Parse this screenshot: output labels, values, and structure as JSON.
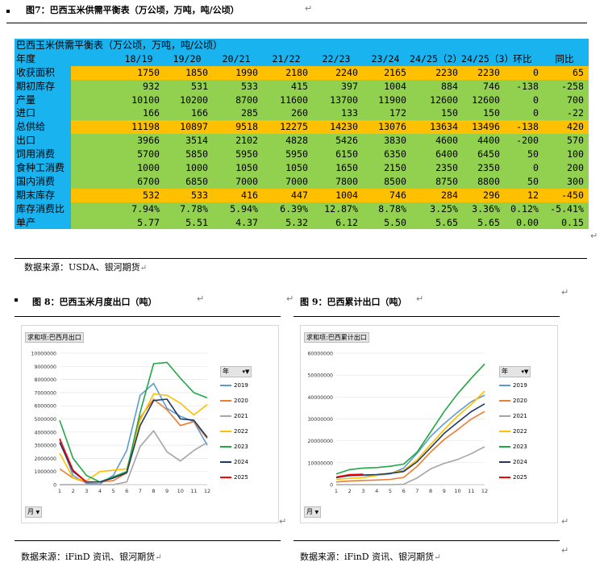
{
  "fig7": {
    "caption": "图7：巴西玉米供需平衡表（万公顷，万吨，吨/公顷）",
    "table_title": "巴西玉米供需平衡表（万公顷，万吨，吨/公顷）",
    "header": [
      "年度",
      "18/19",
      "19/20",
      "20/21",
      "21/22",
      "22/23",
      "23/24",
      "24/25（2）",
      "24/25（3）",
      "环比",
      "同比"
    ],
    "rows": [
      {
        "label": "收获面积",
        "color": "orange",
        "values": [
          "1750",
          "1850",
          "1990",
          "2180",
          "2240",
          "2165",
          "2230",
          "2230",
          "0",
          "65"
        ]
      },
      {
        "label": "期初库存",
        "color": "green",
        "values": [
          "932",
          "531",
          "533",
          "415",
          "397",
          "1004",
          "884",
          "746",
          "-138",
          "-258"
        ]
      },
      {
        "label": "产量",
        "color": "green",
        "values": [
          "10100",
          "10200",
          "8700",
          "11600",
          "13700",
          "11900",
          "12600",
          "12600",
          "0",
          "700"
        ]
      },
      {
        "label": "进口",
        "color": "green",
        "values": [
          "166",
          "166",
          "285",
          "260",
          "133",
          "172",
          "150",
          "150",
          "0",
          "-22"
        ]
      },
      {
        "label": "总供给",
        "color": "orange",
        "values": [
          "11198",
          "10897",
          "9518",
          "12275",
          "14230",
          "13076",
          "13634",
          "13496",
          "-138",
          "420"
        ]
      },
      {
        "label": "出口",
        "color": "green",
        "values": [
          "3966",
          "3514",
          "2102",
          "4828",
          "5426",
          "3830",
          "4600",
          "4400",
          "-200",
          "570"
        ]
      },
      {
        "label": "饲用消费",
        "color": "green",
        "values": [
          "5700",
          "5850",
          "5950",
          "5950",
          "6150",
          "6350",
          "6400",
          "6450",
          "50",
          "100"
        ]
      },
      {
        "label": "食种工消费",
        "color": "green",
        "values": [
          "1000",
          "1000",
          "1050",
          "1050",
          "1650",
          "2150",
          "2350",
          "2350",
          "0",
          "200"
        ]
      },
      {
        "label": "国内消费",
        "color": "green",
        "values": [
          "6700",
          "6850",
          "7000",
          "7000",
          "7800",
          "8500",
          "8750",
          "8800",
          "50",
          "300"
        ]
      },
      {
        "label": "期末库存",
        "color": "orange",
        "values": [
          "532",
          "533",
          "416",
          "447",
          "1004",
          "746",
          "284",
          "296",
          "12",
          "-450"
        ]
      },
      {
        "label": "库存消费比",
        "color": "green",
        "values": [
          "7.94%",
          "7.78%",
          "5.94%",
          "6.39%",
          "12.87%",
          "8.78%",
          "3.25%",
          "3.36%",
          "0.12%",
          "-5.41%"
        ]
      },
      {
        "label": "单产",
        "color": "green",
        "values": [
          "5.77",
          "5.51",
          "4.37",
          "5.32",
          "6.12",
          "5.50",
          "5.65",
          "5.65",
          "0.00",
          "0.15"
        ]
      }
    ],
    "source": "数据来源：USDA、银河期货"
  },
  "fig8": {
    "caption": "图 8：巴西玉米月度出口（吨）",
    "badge": "求和项:巴西月出口",
    "legend_title": "年",
    "month_button": "月",
    "source": "数据来源：iFinD 资讯、银河期货"
  },
  "fig9": {
    "caption": "图 9：巴西累计出口（吨）",
    "badge": "求和项:巴西累计出口",
    "legend_title": "年",
    "month_button": "月",
    "source": "数据来源：iFinD 资讯、银河期货"
  },
  "colors": {
    "title_blue": "#19b3ef",
    "orange": "#ffc000",
    "green": "#92d050"
  },
  "chart_data": [
    {
      "type": "line",
      "x": [
        1,
        2,
        3,
        4,
        5,
        6,
        7,
        8,
        9,
        10,
        11,
        12
      ],
      "xlabel": "",
      "ylabel": "",
      "ylim": [
        0,
        10000000
      ],
      "yticks": [
        0,
        1000000,
        2000000,
        3000000,
        4000000,
        5000000,
        6000000,
        7000000,
        8000000,
        9000000,
        10000000
      ],
      "legend": "right",
      "series": [
        {
          "name": "2019",
          "color": "#5b9bd5",
          "values": [
            3400000,
            700000,
            100000,
            50000,
            700000,
            2600000,
            6800000,
            7700000,
            5800000,
            5200000,
            4800000,
            3000000
          ]
        },
        {
          "name": "2020",
          "color": "#ed7d31",
          "values": [
            1200000,
            500000,
            200000,
            200000,
            300000,
            900000,
            5100000,
            6500000,
            5700000,
            4500000,
            4800000,
            3500000
          ]
        },
        {
          "name": "2021",
          "color": "#a5a5a5",
          "values": [
            0,
            0,
            0,
            0,
            0,
            200000,
            2900000,
            4100000,
            2500000,
            1800000,
            2600000,
            3200000
          ]
        },
        {
          "name": "2022",
          "color": "#ffc000",
          "values": [
            2400000,
            500000,
            300000,
            1000000,
            1100000,
            1200000,
            4900000,
            6900000,
            6800000,
            6200000,
            5300000,
            6100000
          ]
        },
        {
          "name": "2023",
          "color": "#21a846",
          "values": [
            4900000,
            2000000,
            700000,
            200000,
            600000,
            1000000,
            5500000,
            9200000,
            9300000,
            8100000,
            7000000,
            6600000
          ]
        },
        {
          "name": "2024",
          "color": "#203864",
          "values": [
            3200000,
            1000000,
            200000,
            200000,
            500000,
            900000,
            4500000,
            6400000,
            6500000,
            5000000,
            4900000,
            3600000
          ]
        },
        {
          "name": "2025",
          "color": "#ff0000",
          "values": [
            3500000,
            1100000,
            200000,
            null,
            null,
            null,
            null,
            null,
            null,
            null,
            null,
            null
          ]
        }
      ]
    },
    {
      "type": "line",
      "x": [
        1,
        2,
        3,
        4,
        5,
        6,
        7,
        8,
        9,
        10,
        11,
        12
      ],
      "xlabel": "",
      "ylabel": "",
      "ylim": [
        0,
        60000000
      ],
      "yticks": [
        0,
        10000000,
        20000000,
        30000000,
        40000000,
        50000000,
        60000000
      ],
      "legend": "right",
      "series": [
        {
          "name": "2019",
          "color": "#5b9bd5",
          "values": [
            3400000,
            4100000,
            4200000,
            4250000,
            4950000,
            7550000,
            14350000,
            22050000,
            27850000,
            33050000,
            37850000,
            40850000
          ]
        },
        {
          "name": "2020",
          "color": "#ed7d31",
          "values": [
            1200000,
            1700000,
            1900000,
            2100000,
            2400000,
            3300000,
            8400000,
            14900000,
            20600000,
            25100000,
            29900000,
            33400000
          ]
        },
        {
          "name": "2021",
          "color": "#a5a5a5",
          "values": [
            0,
            0,
            0,
            0,
            0,
            200000,
            3100000,
            7200000,
            9700000,
            11500000,
            14100000,
            17300000
          ]
        },
        {
          "name": "2022",
          "color": "#ffc000",
          "values": [
            2400000,
            2900000,
            3200000,
            4200000,
            5300000,
            6500000,
            11400000,
            18300000,
            25100000,
            31300000,
            36600000,
            42700000
          ]
        },
        {
          "name": "2023",
          "color": "#21a846",
          "values": [
            4900000,
            6900000,
            7600000,
            7800000,
            8400000,
            9400000,
            14900000,
            24100000,
            33400000,
            41500000,
            48500000,
            55100000
          ]
        },
        {
          "name": "2024",
          "color": "#203864",
          "values": [
            3200000,
            4200000,
            4400000,
            4600000,
            5100000,
            6000000,
            10500000,
            16900000,
            23400000,
            28400000,
            33300000,
            36900000
          ]
        },
        {
          "name": "2025",
          "color": "#ff0000",
          "values": [
            3500000,
            4600000,
            4800000,
            null,
            null,
            null,
            null,
            null,
            null,
            null,
            null,
            null
          ]
        }
      ]
    }
  ]
}
